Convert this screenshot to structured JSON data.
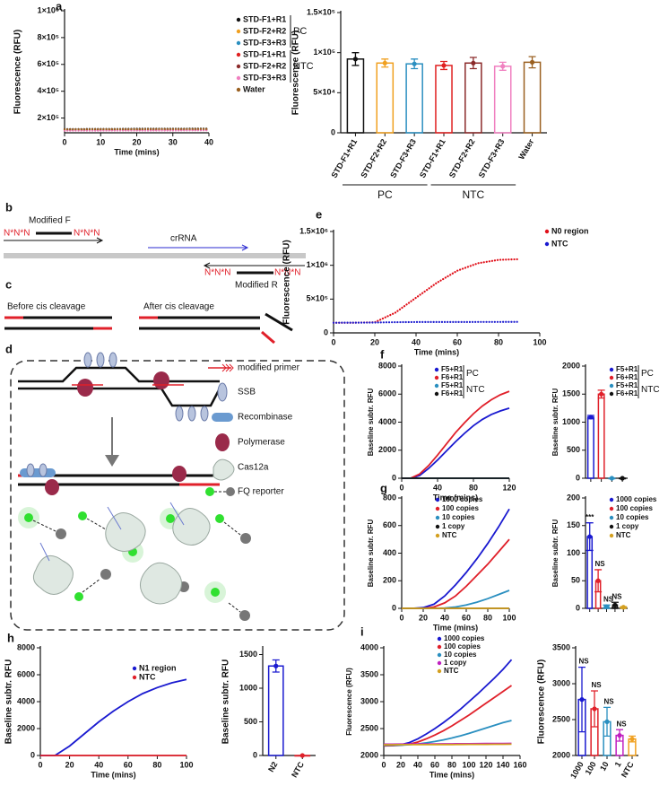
{
  "diagrams": {
    "b": {
      "panel": "b",
      "forward": "Modified F",
      "crrna": "crRNA",
      "reverse": "Modified R",
      "tags": [
        "N*N*N",
        "N*N*N",
        "N*N*N",
        "N*N*N"
      ]
    },
    "c": {
      "panel": "c",
      "before": "Before cis cleavage",
      "after": "After cis cleavage"
    },
    "d": {
      "panel": "d",
      "legend": [
        "modified primer",
        "SSB",
        "Recombinase",
        "Polymerase",
        "Cas12a",
        "FQ reporter"
      ]
    }
  },
  "chart_data": [
    {
      "type": "line",
      "panel": "a",
      "ylabel": "Fluorescence (RFU)",
      "xlabel": "Time (mins)",
      "line_style": "dotted",
      "legend": "right",
      "x": [
        0,
        5,
        10,
        15,
        20,
        25,
        30,
        35,
        40
      ],
      "xlim": [
        0,
        40
      ],
      "xticks": [
        0,
        10,
        20,
        30,
        40
      ],
      "ylim": [
        90000,
        1000000
      ],
      "yticks": [
        {
          "value": 200000,
          "label": "2×10⁵"
        },
        {
          "value": 400000,
          "label": "4×10⁵"
        },
        {
          "value": 600000,
          "label": "6×10⁵"
        },
        {
          "value": 800000,
          "label": "8×10⁵"
        },
        {
          "value": 1000000,
          "label": "1×10⁶"
        }
      ],
      "series": [
        {
          "name": "STD-F1+R1",
          "color": "#111111",
          "values": [
            118000,
            118000,
            119000,
            119000,
            120000,
            120000,
            120000,
            121000,
            121000
          ]
        },
        {
          "name": "STD-F2+R2",
          "color": "#f0a020",
          "values": [
            112000,
            112000,
            113000,
            113000,
            113000,
            114000,
            114000,
            114000,
            115000
          ]
        },
        {
          "name": "STD-F3+R3",
          "color": "#2a8fc0",
          "values": [
            110000,
            110000,
            110000,
            111000,
            111000,
            111000,
            112000,
            112000,
            112000
          ]
        },
        {
          "name": "STD-F1+R1",
          "color": "#e02020",
          "values": [
            108000,
            108000,
            108000,
            109000,
            109000,
            109000,
            110000,
            110000,
            110000
          ]
        },
        {
          "name": "STD-F2+R2",
          "color": "#8b2a2a",
          "values": [
            114000,
            114000,
            115000,
            115000,
            115000,
            116000,
            116000,
            116000,
            117000
          ]
        },
        {
          "name": "STD-F3+R3",
          "color": "#f080c0",
          "values": [
            106000,
            106000,
            106000,
            107000,
            107000,
            107000,
            107000,
            108000,
            108000
          ]
        },
        {
          "name": "Water",
          "color": "#9a6020",
          "values": [
            116000,
            116000,
            117000,
            117000,
            117000,
            118000,
            118000,
            118000,
            119000
          ]
        }
      ],
      "legend_groups": [
        {
          "label": "PC",
          "from": 0,
          "to": 2
        },
        {
          "label": "NTC",
          "from": 3,
          "to": 5
        }
      ]
    },
    {
      "type": "bar",
      "ylabel": "Fluorescence (RFU)",
      "categories": [
        "STD-F1+R1",
        "STD-F2+R2",
        "STD-F3+R3",
        "STD-F1+R1",
        "STD-F2+R2",
        "STD-F3+R3",
        "Water"
      ],
      "values": [
        92000,
        87000,
        86000,
        84000,
        87000,
        83000,
        88000
      ],
      "errors": [
        8000,
        5000,
        6000,
        5000,
        7000,
        5000,
        7000
      ],
      "colors": [
        "#111111",
        "#f0a020",
        "#2a8fc0",
        "#e02020",
        "#8b2a2a",
        "#f080c0",
        "#9a6020"
      ],
      "ylim": [
        0,
        150000
      ],
      "yticks": [
        0,
        {
          "value": 50000,
          "label": "5×10⁴"
        },
        {
          "value": 100000,
          "label": "1×10⁵"
        },
        {
          "value": 150000,
          "label": "1.5×10⁵"
        }
      ],
      "groups": [
        {
          "label": "PC",
          "from": 0,
          "to": 2
        },
        {
          "label": "NTC",
          "from": 3,
          "to": 5
        }
      ]
    },
    {
      "type": "line",
      "panel": "e",
      "ylabel": "Fluorescence (RFU)",
      "xlabel": "Time (mins)",
      "line_style": "dotted",
      "legend": "right",
      "x": [
        0,
        10,
        20,
        30,
        40,
        50,
        60,
        70,
        80,
        90
      ],
      "xlim": [
        0,
        100
      ],
      "xticks": [
        0,
        20,
        40,
        60,
        80,
        100
      ],
      "ylim": [
        0,
        1500000
      ],
      "yticks": [
        0,
        {
          "value": 500000,
          "label": "5×10⁵"
        },
        {
          "value": 1000000,
          "label": "1×10⁶"
        },
        {
          "value": 1500000,
          "label": "1.5×10⁶"
        }
      ],
      "series": [
        {
          "name": "N0 region",
          "color": "#e0101a",
          "values": [
            150000,
            150000,
            156000,
            300000,
            520000,
            740000,
            920000,
            1030000,
            1080000,
            1090000
          ]
        },
        {
          "name": "NTC",
          "color": "#1a1ad0",
          "values": [
            150000,
            151000,
            152000,
            158000,
            160000,
            160000,
            161000,
            162000,
            162000,
            163000
          ]
        }
      ]
    },
    {
      "type": "line",
      "panel": "f",
      "ylabel": "Baseline subtr. RFU",
      "xlabel": "Time (mins)",
      "legend": "upper-right",
      "x": [
        0,
        10,
        20,
        30,
        40,
        50,
        60,
        70,
        80,
        90,
        100,
        110,
        120
      ],
      "xlim": [
        0,
        120
      ],
      "xticks": [
        0,
        40,
        80,
        120
      ],
      "ylim": [
        0,
        8000
      ],
      "yticks": [
        0,
        2000,
        4000,
        6000,
        8000
      ],
      "series": [
        {
          "name": "F5+R1",
          "color": "#1a1ad0",
          "values": [
            0,
            0,
            200,
            700,
            1300,
            1950,
            2600,
            3200,
            3750,
            4200,
            4550,
            4800,
            5000
          ]
        },
        {
          "name": "F6+R1",
          "color": "#e0202a",
          "values": [
            0,
            0,
            300,
            900,
            1650,
            2450,
            3250,
            3950,
            4600,
            5150,
            5600,
            5950,
            6200
          ]
        },
        {
          "name": "F5+R1",
          "color": "#2a8fc0",
          "values": [
            0,
            0,
            0,
            0,
            0,
            0,
            0,
            0,
            0,
            0,
            0,
            0,
            0
          ]
        },
        {
          "name": "F6+R1",
          "color": "#111111",
          "values": [
            0,
            0,
            0,
            0,
            0,
            0,
            0,
            0,
            0,
            0,
            0,
            0,
            0
          ]
        }
      ],
      "legend_groups": [
        {
          "label": "PC",
          "from": 0,
          "to": 1
        },
        {
          "label": "NTC",
          "from": 2,
          "to": 3
        }
      ]
    },
    {
      "type": "bar",
      "ylabel": "Baseline subtr. RFU",
      "legend": "upper-right",
      "categories": [
        null,
        null,
        null,
        null
      ],
      "values": [
        1090,
        1500,
        0,
        0
      ],
      "errors": [
        30,
        70,
        0,
        0
      ],
      "colors": [
        "#1a1ad0",
        "#e0202a",
        "#2a8fc0",
        "#111111"
      ],
      "ylim": [
        0,
        2000
      ],
      "yticks": [
        0,
        500,
        1000,
        1500,
        2000
      ],
      "legend_entries": [
        {
          "name": "F5+R1",
          "color": "#1a1ad0"
        },
        {
          "name": "F6+R1",
          "color": "#e0202a"
        },
        {
          "name": "F5+R1",
          "color": "#2a8fc0"
        },
        {
          "name": "F6+R1",
          "color": "#111111"
        }
      ],
      "legend_groups": [
        {
          "label": "PC",
          "from": 0,
          "to": 1
        },
        {
          "label": "NTC",
          "from": 2,
          "to": 3
        }
      ]
    },
    {
      "type": "line",
      "panel": "g",
      "ylabel": "Baseline subtr. RFU",
      "xlabel": "Time (mins)",
      "legend": "upper-left",
      "x": [
        0,
        10,
        20,
        30,
        40,
        50,
        60,
        70,
        80,
        90,
        100
      ],
      "xlim": [
        0,
        100
      ],
      "xticks": [
        0,
        20,
        40,
        60,
        80,
        100
      ],
      "ylim": [
        0,
        800
      ],
      "yticks": [
        0,
        200,
        400,
        600,
        800
      ],
      "series": [
        {
          "name": "1000 copies",
          "color": "#1a1ad0",
          "values": [
            0,
            0,
            5,
            30,
            90,
            170,
            260,
            360,
            470,
            590,
            720
          ]
        },
        {
          "name": "100 copies",
          "color": "#e0202a",
          "values": [
            0,
            0,
            0,
            10,
            40,
            90,
            160,
            240,
            320,
            410,
            500
          ]
        },
        {
          "name": "10 copies",
          "color": "#2a8fc0",
          "values": [
            0,
            0,
            0,
            0,
            2,
            10,
            25,
            45,
            70,
            100,
            130
          ]
        },
        {
          "name": "1 copy",
          "color": "#111111",
          "values": [
            0,
            0,
            0,
            0,
            0,
            0,
            0,
            0,
            0,
            0,
            0
          ]
        },
        {
          "name": "NTC",
          "color": "#d4a020",
          "values": [
            0,
            0,
            0,
            0,
            0,
            0,
            0,
            0,
            0,
            0,
            0
          ]
        }
      ]
    },
    {
      "type": "bar",
      "ylabel": "Baseline subtr. RFU",
      "legend": "upper-right",
      "categories": [
        null,
        null,
        null,
        null,
        null
      ],
      "values": [
        130,
        50,
        3,
        6,
        2
      ],
      "errors": [
        25,
        20,
        3,
        5,
        1
      ],
      "annotations": [
        "***",
        "NS",
        "NS",
        "NS",
        null
      ],
      "colors": [
        "#1a1ad0",
        "#e0202a",
        "#2a8fc0",
        "#111111",
        "#d4a020"
      ],
      "ylim": [
        0,
        200
      ],
      "yticks": [
        0,
        50,
        100,
        150,
        200
      ],
      "legend_entries": [
        {
          "name": "1000 copies",
          "color": "#1a1ad0"
        },
        {
          "name": "100 copies",
          "color": "#e0202a"
        },
        {
          "name": "10 copies",
          "color": "#2a8fc0"
        },
        {
          "name": "1 copy",
          "color": "#111111"
        },
        {
          "name": "NTC",
          "color": "#d4a020"
        }
      ]
    },
    {
      "type": "line",
      "panel": "h",
      "ylabel": "Baseline subtr. RFU",
      "xlabel": "Time (mins)",
      "legend": "upper-right",
      "x": [
        0,
        10,
        20,
        30,
        40,
        50,
        60,
        70,
        80,
        90,
        100
      ],
      "xlim": [
        0,
        100
      ],
      "xticks": [
        0,
        20,
        40,
        60,
        80,
        100
      ],
      "ylim": [
        0,
        8000
      ],
      "yticks": [
        0,
        2000,
        4000,
        6000,
        8000
      ],
      "series": [
        {
          "name": "N1 region",
          "color": "#1a1ad0",
          "values": [
            0,
            0,
            700,
            1600,
            2500,
            3300,
            4000,
            4600,
            5050,
            5400,
            5650
          ]
        },
        {
          "name": "NTC",
          "color": "#e0202a",
          "values": [
            0,
            0,
            0,
            0,
            0,
            0,
            0,
            0,
            0,
            0,
            0
          ]
        }
      ]
    },
    {
      "type": "bar",
      "ylabel": "Baseline subtr. RFU",
      "categories": [
        "N2",
        "NTC"
      ],
      "values": [
        1330,
        0
      ],
      "errors": [
        90,
        0
      ],
      "colors": [
        "#1a1ad0",
        "#e0202a"
      ],
      "ylim": [
        0,
        1600
      ],
      "yticks": [
        0,
        500,
        1000,
        1500
      ]
    },
    {
      "type": "line",
      "panel": "i",
      "ylabel": "Fluorescence (RFU)",
      "xlabel": "Time (mins)",
      "legend": "upper-left",
      "x": [
        0,
        10,
        20,
        30,
        40,
        50,
        60,
        70,
        80,
        90,
        100,
        110,
        120,
        130,
        140,
        150
      ],
      "xlim": [
        0,
        160
      ],
      "xticks": [
        0,
        20,
        40,
        60,
        80,
        100,
        120,
        140,
        160
      ],
      "ylim": [
        2000,
        4000
      ],
      "yticks": [
        2000,
        2500,
        3000,
        3500,
        4000
      ],
      "series": [
        {
          "name": "1000 copies",
          "color": "#1a1ad0",
          "values": [
            2180,
            2185,
            2200,
            2240,
            2310,
            2400,
            2500,
            2610,
            2730,
            2860,
            3000,
            3140,
            3290,
            3440,
            3600,
            3780
          ]
        },
        {
          "name": "100 copies",
          "color": "#e0202a",
          "values": [
            2180,
            2182,
            2190,
            2210,
            2250,
            2310,
            2380,
            2460,
            2550,
            2650,
            2750,
            2860,
            2970,
            3080,
            3190,
            3300
          ]
        },
        {
          "name": "10 copies",
          "color": "#2a8fc0",
          "values": [
            2190,
            2190,
            2192,
            2200,
            2215,
            2235,
            2260,
            2290,
            2325,
            2365,
            2410,
            2460,
            2510,
            2560,
            2610,
            2650
          ]
        },
        {
          "name": "1 copy",
          "color": "#c020c0",
          "values": [
            2210,
            2210,
            2211,
            2212,
            2213,
            2214,
            2215,
            2216,
            2217,
            2218,
            2219,
            2220,
            2221,
            2222,
            2223,
            2225
          ]
        },
        {
          "name": "NTC",
          "color": "#d4a020",
          "values": [
            2200,
            2200,
            2201,
            2201,
            2202,
            2202,
            2203,
            2204,
            2204,
            2205,
            2206,
            2206,
            2207,
            2208,
            2209,
            2210
          ]
        }
      ]
    },
    {
      "type": "bar",
      "ylabel": "Fluorescence (RFU)",
      "categories": [
        "1000",
        "100",
        "10",
        "1",
        "NTC"
      ],
      "values": [
        2780,
        2650,
        2470,
        2280,
        2230
      ],
      "errors": [
        450,
        250,
        200,
        80,
        40
      ],
      "annotations": [
        "NS",
        "NS",
        "NS",
        "NS",
        null
      ],
      "colors": [
        "#1a1ad0",
        "#e0202a",
        "#2a8fc0",
        "#c020c0",
        "#f0a020"
      ],
      "ylim": [
        2000,
        3500
      ],
      "yticks": [
        2000,
        2500,
        3000,
        3500
      ]
    }
  ]
}
